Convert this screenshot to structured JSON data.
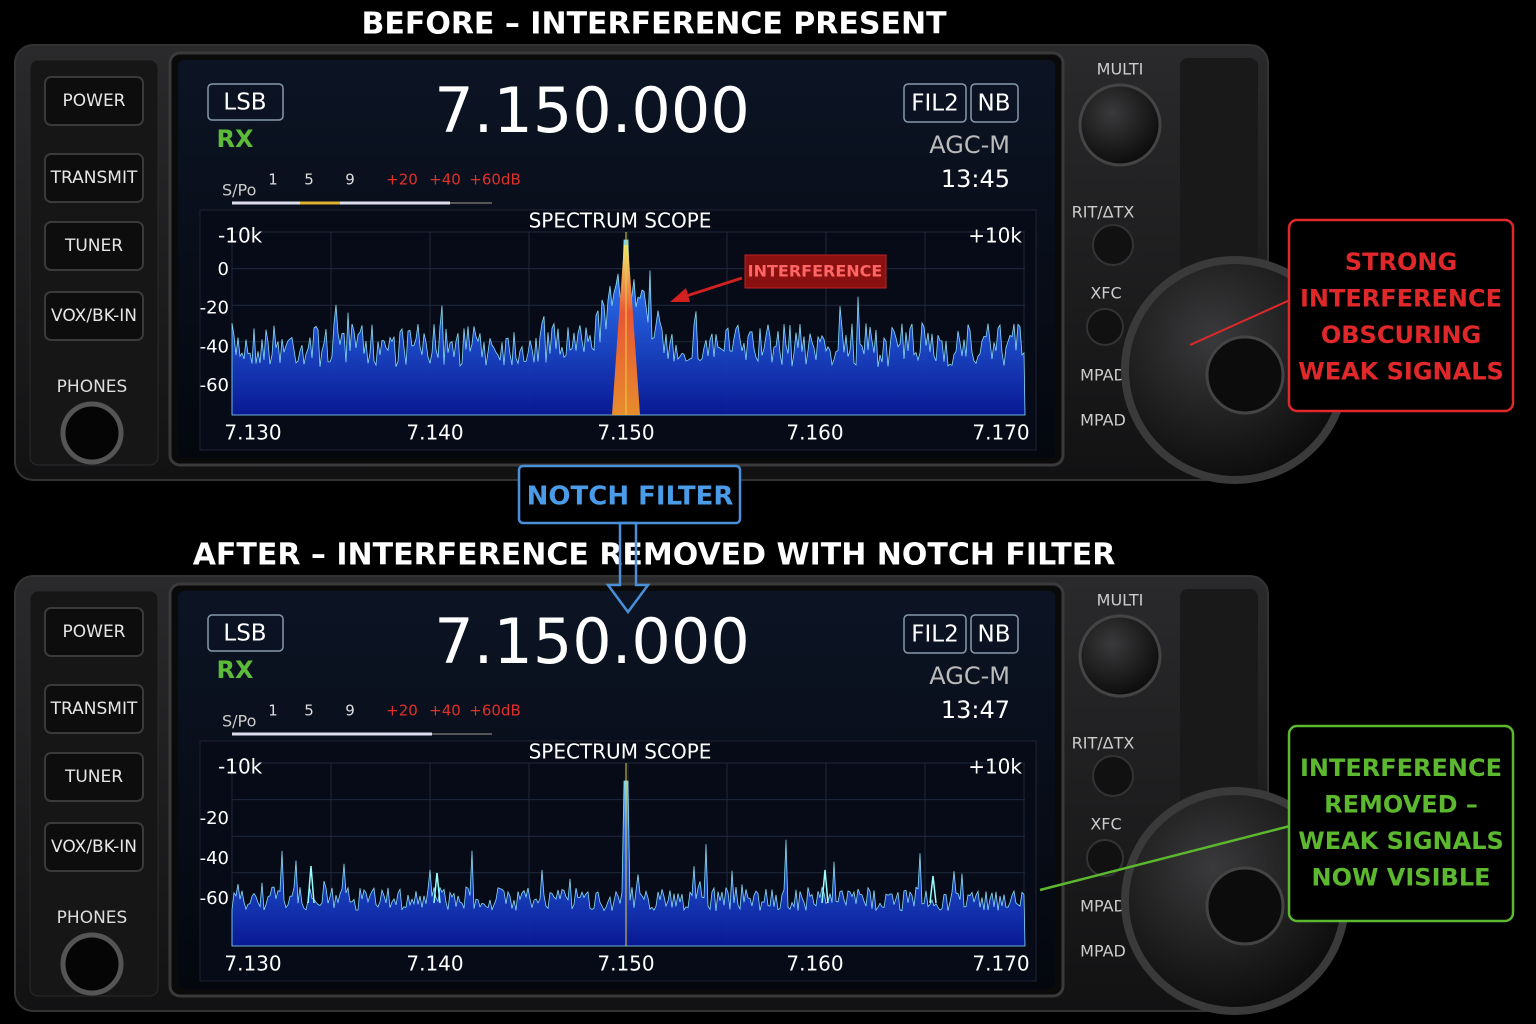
{
  "panels": [
    {
      "title": "BEFORE – INTERFERENCE PRESENT",
      "buttons": [
        "POWER",
        "TRANSMIT",
        "TUNER",
        "VOX/BK-IN"
      ],
      "phones": "PHONES",
      "mode": "LSB",
      "status": "RX",
      "frequency": "7.150.000",
      "filter": "FIL2",
      "nb": "NB",
      "agc": "AGC-M",
      "time": "13:45",
      "meter_label": "S/Po",
      "meter_scale": [
        "1",
        "5",
        "9",
        "+20",
        "+40",
        "+60dB"
      ],
      "scope_title": "SPECTRUM SCOPE",
      "span_left": "-10k",
      "span_right": "+10k",
      "levels": [
        "0",
        "-20",
        "-40",
        "-60"
      ],
      "freqs": [
        "7.130",
        "7.140",
        "7.150",
        "7.160",
        "7.170"
      ],
      "knob_labels": [
        "MULTI",
        "RIT/ΔTX",
        "XFC",
        "MPAD",
        "MPAD"
      ],
      "annotation": "INTERFERENCE",
      "callout": [
        "STRONG",
        "INTERFERENCE",
        "OBSCURING",
        "WEAK SIGNALS"
      ]
    },
    {
      "title": "AFTER – INTERFERENCE REMOVED WITH NOTCH FILTER",
      "buttons": [
        "POWER",
        "TRANSMIT",
        "TUNER",
        "VOX/BK-IN"
      ],
      "phones": "PHONES",
      "mode": "LSB",
      "status": "RX",
      "frequency": "7.150.000",
      "filter": "FIL2",
      "nb": "NB",
      "agc": "AGC-M",
      "time": "13:47",
      "meter_label": "S/Po",
      "meter_scale": [
        "1",
        "5",
        "9",
        "+20",
        "+40",
        "+60dB"
      ],
      "scope_title": "SPECTRUM SCOPE",
      "span_left": "-10k",
      "span_right": "+10k",
      "levels": [
        "-20",
        "-40",
        "-60"
      ],
      "freqs": [
        "7.130",
        "7.140",
        "7.150",
        "7.160",
        "7.170"
      ],
      "knob_labels": [
        "MULTI",
        "RIT/ΔTX",
        "XFC",
        "MPAD",
        "MPAD"
      ],
      "callout": [
        "INTERFERENCE",
        "REMOVED –",
        "WEAK SIGNALS",
        "NOW VISIBLE"
      ]
    }
  ],
  "notch_label": "NOTCH FILTER"
}
